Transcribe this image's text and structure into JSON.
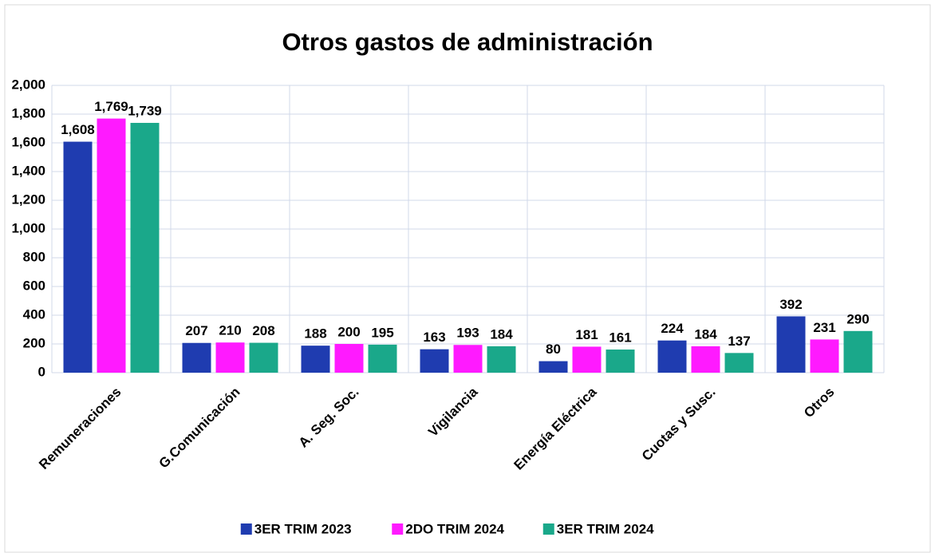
{
  "chart_data": {
    "type": "bar",
    "title": "Otros gastos de administración",
    "categories": [
      "Remuneraciones",
      "G.Comunicación",
      "A. Seg. Soc.",
      "Vigilancia",
      "Energía Eléctrica",
      "Cuotas y Susc.",
      "Otros"
    ],
    "series": [
      {
        "name": "3ER TRIM 2023",
        "color": "#1f3cb0",
        "values": [
          1608,
          207,
          188,
          163,
          80,
          224,
          392
        ],
        "value_labels": [
          "1,608",
          "207",
          "188",
          "163",
          "80",
          "224",
          "392"
        ]
      },
      {
        "name": "2DO TRIM 2024",
        "color": "#ff1aff",
        "values": [
          1769,
          210,
          200,
          193,
          181,
          184,
          231
        ],
        "value_labels": [
          "1,769",
          "210",
          "200",
          "193",
          "181",
          "184",
          "231"
        ]
      },
      {
        "name": "3ER TRIM 2024",
        "color": "#1aa88a",
        "values": [
          1739,
          208,
          195,
          184,
          161,
          137,
          290
        ],
        "value_labels": [
          "1,739",
          "208",
          "195",
          "184",
          "161",
          "137",
          "290"
        ]
      }
    ],
    "ylim": [
      0,
      2000
    ],
    "yticks": [
      0,
      200,
      400,
      600,
      800,
      {
        "value": 1000,
        "label": "1,000"
      },
      {
        "value": 1200,
        "label": "1,200"
      },
      {
        "value": 1400,
        "label": "1,400"
      },
      {
        "value": 1600,
        "label": "1,600"
      },
      {
        "value": 1800,
        "label": "1,800"
      },
      {
        "value": 2000,
        "label": "2,000"
      }
    ],
    "grid": true,
    "legend": "bottom"
  }
}
